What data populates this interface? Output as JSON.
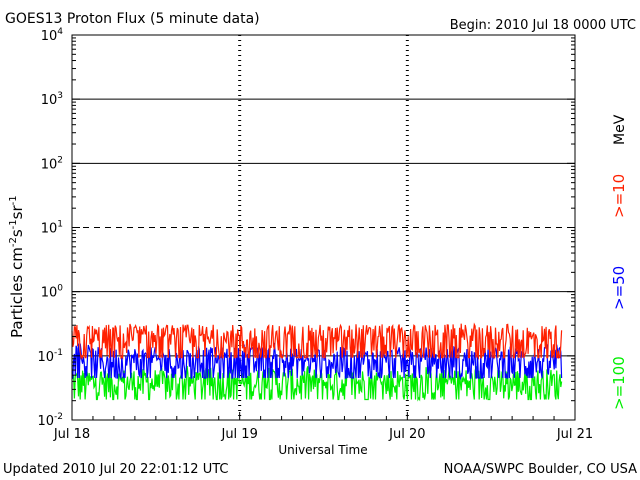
{
  "chart_data": {
    "type": "line",
    "title": "GOES13 Proton Flux (5 minute data)",
    "begin_label": "Begin: 2010 Jul 18 0000 UTC",
    "xlabel": "Universal Time",
    "ylabel_base": "Particles cm",
    "ylabel_sup1": "-2",
    "ylabel_mid1": "s",
    "ylabel_sup2": "-1",
    "ylabel_mid2": "sr",
    "ylabel_sup3": "-1",
    "y_scale": "log",
    "ylim": [
      0.01,
      10000
    ],
    "y_ticks": [
      {
        "base": "10",
        "exp": "-2",
        "value": 0.01
      },
      {
        "base": "10",
        "exp": "-1",
        "value": 0.1
      },
      {
        "base": "10",
        "exp": "0",
        "value": 1
      },
      {
        "base": "10",
        "exp": "1",
        "value": 10
      },
      {
        "base": "10",
        "exp": "2",
        "value": 100
      },
      {
        "base": "10",
        "exp": "3",
        "value": 1000
      },
      {
        "base": "10",
        "exp": "4",
        "value": 10000
      }
    ],
    "x_ticks": [
      "Jul 18",
      "Jul 19",
      "Jul 20",
      "Jul 21"
    ],
    "x_range_days": [
      0,
      3
    ],
    "data_end_day": 2.92,
    "units_label": "MeV",
    "series": [
      {
        "name": ">=10",
        "color": "#ff2000",
        "base": 0.17,
        "spread": 0.14,
        "spike": 0.32
      },
      {
        "name": ">=50",
        "color": "#0000ff",
        "base": 0.082,
        "spread": 0.055,
        "spike": 0.16
      },
      {
        "name": ">=100",
        "color": "#00ee00",
        "base": 0.038,
        "spread": 0.025,
        "spike": 0.07
      }
    ]
  },
  "footer": {
    "updated": "Updated 2010 Jul 20 22:01:12 UTC",
    "credit": "NOAA/SWPC Boulder, CO USA"
  }
}
